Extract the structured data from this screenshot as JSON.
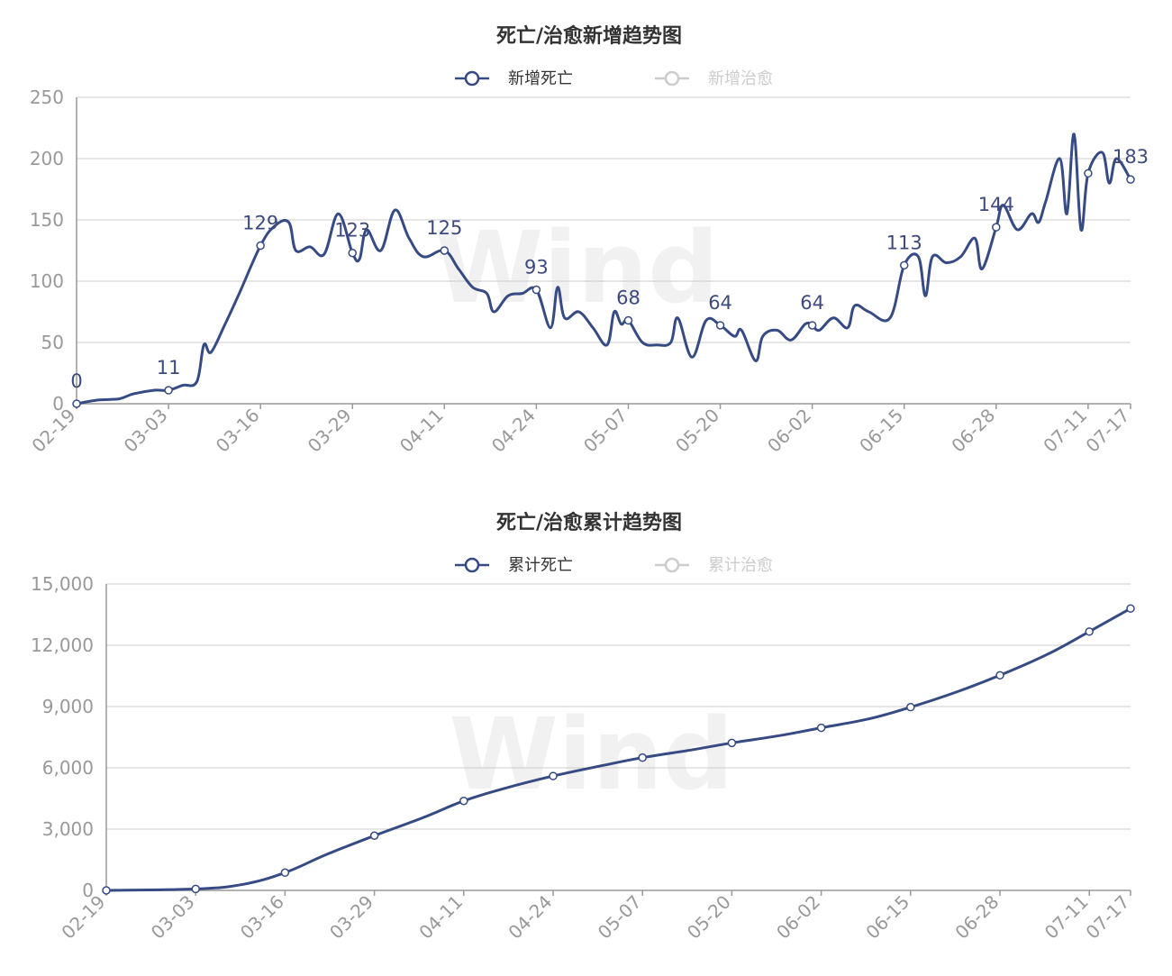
{
  "colors": {
    "series": "#364a83",
    "inactive": "#cccccc",
    "grid": "#cccccc",
    "axis": "#999999",
    "title": "#333333",
    "watermark": "#eeeeee"
  },
  "watermark": "Wind",
  "chart_data": [
    {
      "type": "line",
      "title": "死亡/治愈新增趋势图",
      "legend": [
        {
          "name": "新增死亡",
          "active": true
        },
        {
          "name": "新增治愈",
          "active": false
        }
      ],
      "legend_position": "top-center",
      "grid": true,
      "ylim": [
        0,
        250
      ],
      "yticks": [
        0,
        50,
        100,
        150,
        200,
        250
      ],
      "xlim": [
        "02-19",
        "07-17"
      ],
      "xticks": [
        "02-19",
        "03-03",
        "03-16",
        "03-29",
        "04-11",
        "04-24",
        "05-07",
        "05-20",
        "06-02",
        "06-15",
        "06-28",
        "07-11",
        "07-17"
      ],
      "series": [
        {
          "name": "新增死亡",
          "points": [
            [
              "02-19",
              0
            ],
            [
              "02-22",
              3
            ],
            [
              "02-25",
              4
            ],
            [
              "02-27",
              8
            ],
            [
              "03-01",
              11
            ],
            [
              "03-03",
              11
            ],
            [
              "03-05",
              15
            ],
            [
              "03-07",
              18
            ],
            [
              "03-08",
              48
            ],
            [
              "03-09",
              42
            ],
            [
              "03-11",
              65
            ],
            [
              "03-13",
              90
            ],
            [
              "03-16",
              129
            ],
            [
              "03-18",
              145
            ],
            [
              "03-20",
              148
            ],
            [
              "03-21",
              125
            ],
            [
              "03-23",
              128
            ],
            [
              "03-25",
              122
            ],
            [
              "03-27",
              155
            ],
            [
              "03-29",
              123
            ],
            [
              "03-30",
              118
            ],
            [
              "03-31",
              142
            ],
            [
              "04-02",
              125
            ],
            [
              "04-04",
              158
            ],
            [
              "04-06",
              135
            ],
            [
              "04-08",
              120
            ],
            [
              "04-11",
              125
            ],
            [
              "04-13",
              110
            ],
            [
              "04-15",
              95
            ],
            [
              "04-17",
              90
            ],
            [
              "04-18",
              75
            ],
            [
              "04-20",
              88
            ],
            [
              "04-22",
              90
            ],
            [
              "04-24",
              93
            ],
            [
              "04-26",
              62
            ],
            [
              "04-27",
              95
            ],
            [
              "04-28",
              70
            ],
            [
              "04-30",
              75
            ],
            [
              "05-02",
              62
            ],
            [
              "05-04",
              48
            ],
            [
              "05-05",
              75
            ],
            [
              "05-06",
              65
            ],
            [
              "05-07",
              68
            ],
            [
              "05-09",
              50
            ],
            [
              "05-11",
              48
            ],
            [
              "05-13",
              50
            ],
            [
              "05-14",
              70
            ],
            [
              "05-16",
              38
            ],
            [
              "05-18",
              68
            ],
            [
              "05-20",
              64
            ],
            [
              "05-22",
              55
            ],
            [
              "05-23",
              60
            ],
            [
              "05-25",
              35
            ],
            [
              "05-26",
              55
            ],
            [
              "05-28",
              60
            ],
            [
              "05-30",
              52
            ],
            [
              "06-01",
              65
            ],
            [
              "06-02",
              64
            ],
            [
              "06-03",
              60
            ],
            [
              "06-05",
              70
            ],
            [
              "06-07",
              62
            ],
            [
              "06-08",
              80
            ],
            [
              "06-10",
              75
            ],
            [
              "06-13",
              70
            ],
            [
              "06-15",
              113
            ],
            [
              "06-17",
              120
            ],
            [
              "06-18",
              88
            ],
            [
              "06-19",
              120
            ],
            [
              "06-21",
              115
            ],
            [
              "06-23",
              120
            ],
            [
              "06-25",
              135
            ],
            [
              "06-26",
              110
            ],
            [
              "06-28",
              144
            ],
            [
              "06-29",
              162
            ],
            [
              "07-01",
              142
            ],
            [
              "07-03",
              155
            ],
            [
              "07-04",
              148
            ],
            [
              "07-05",
              165
            ],
            [
              "07-07",
              200
            ],
            [
              "07-08",
              155
            ],
            [
              "07-09",
              220
            ],
            [
              "07-10",
              142
            ],
            [
              "07-11",
              188
            ],
            [
              "07-13",
              205
            ],
            [
              "07-14",
              180
            ],
            [
              "07-15",
              200
            ],
            [
              "07-17",
              183
            ]
          ],
          "labeled_points": [
            [
              "02-19",
              0
            ],
            [
              "03-03",
              11
            ],
            [
              "03-16",
              129
            ],
            [
              "03-29",
              123
            ],
            [
              "04-11",
              125
            ],
            [
              "04-24",
              93
            ],
            [
              "05-07",
              68
            ],
            [
              "05-20",
              64
            ],
            [
              "06-02",
              64
            ],
            [
              "06-15",
              113
            ],
            [
              "06-28",
              144
            ],
            [
              "07-11",
              188
            ],
            [
              "07-17",
              183
            ]
          ],
          "data_labels": [
            "0",
            "11",
            "129",
            "123",
            "125",
            "93",
            "68",
            "64",
            "64",
            "113",
            "144",
            "",
            "183"
          ]
        }
      ]
    },
    {
      "type": "line",
      "title": "死亡/治愈累计趋势图",
      "legend": [
        {
          "name": "累计死亡",
          "active": true
        },
        {
          "name": "累计治愈",
          "active": false
        }
      ],
      "legend_position": "top-center",
      "grid": true,
      "ylim": [
        0,
        15000
      ],
      "yticks": [
        0,
        3000,
        6000,
        9000,
        12000,
        15000
      ],
      "ytick_labels": [
        "0",
        "3,000",
        "6,000",
        "9,000",
        "12,000",
        "15,000"
      ],
      "xlim": [
        "02-19",
        "07-17"
      ],
      "xticks": [
        "02-19",
        "03-03",
        "03-16",
        "03-29",
        "04-11",
        "04-24",
        "05-07",
        "05-20",
        "06-02",
        "06-15",
        "06-28",
        "07-11",
        "07-17"
      ],
      "series": [
        {
          "name": "累计死亡",
          "points": [
            [
              "02-19",
              0
            ],
            [
              "03-03",
              70
            ],
            [
              "03-10",
              300
            ],
            [
              "03-16",
              870
            ],
            [
              "03-22",
              1750
            ],
            [
              "03-29",
              2680
            ],
            [
              "04-05",
              3550
            ],
            [
              "04-11",
              4380
            ],
            [
              "04-17",
              5000
            ],
            [
              "04-24",
              5600
            ],
            [
              "05-01",
              6100
            ],
            [
              "05-07",
              6500
            ],
            [
              "05-14",
              6870
            ],
            [
              "05-20",
              7220
            ],
            [
              "05-27",
              7580
            ],
            [
              "06-02",
              7960
            ],
            [
              "06-09",
              8400
            ],
            [
              "06-15",
              8970
            ],
            [
              "06-22",
              9750
            ],
            [
              "06-28",
              10530
            ],
            [
              "07-05",
              11570
            ],
            [
              "07-11",
              12670
            ],
            [
              "07-17",
              13800
            ]
          ],
          "markers": [
            "02-19",
            "03-03",
            "03-16",
            "03-29",
            "04-11",
            "04-24",
            "05-07",
            "05-20",
            "06-02",
            "06-15",
            "06-28",
            "07-11",
            "07-17"
          ]
        }
      ]
    }
  ]
}
